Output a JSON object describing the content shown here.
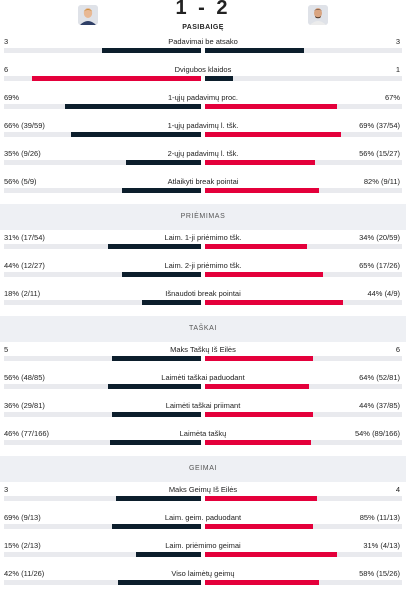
{
  "header": {
    "score": "1 - 2",
    "status": "PASIBAIGĘ",
    "home_player_avatar": "player-photo",
    "away_player_avatar": "player-photo"
  },
  "colors": {
    "dark_bar": "#0c1e2c",
    "red_bar": "#e4003b",
    "track": "#e9eaee",
    "section_bg": "#eef0f4"
  },
  "rows": [
    {
      "name": "Padavimai be atsako",
      "home": "3",
      "away": "3",
      "home_frac": 0.5,
      "away_frac": 0.5,
      "home_color": "dark",
      "away_color": "dark"
    },
    {
      "name": "Dvigubos klaidos",
      "home": "6",
      "away": "1",
      "home_frac": 0.857,
      "away_frac": 0.143,
      "home_color": "red",
      "away_color": "dark"
    },
    {
      "name": "1-ųjų padavimų proc.",
      "home": "69%",
      "away": "67%",
      "home_frac": 0.69,
      "away_frac": 0.67,
      "home_color": "dark",
      "away_color": "red"
    },
    {
      "name": "1-ųjų padavimų l. tšk.",
      "home": "66% (39/59)",
      "away": "69% (37/54)",
      "home_frac": 0.66,
      "away_frac": 0.69,
      "home_color": "dark",
      "away_color": "red"
    },
    {
      "name": "2-ųjų padavimų l. tšk.",
      "home": "35% (9/26)",
      "away": "56% (15/27)",
      "home_frac": 0.38,
      "away_frac": 0.56,
      "home_color": "dark",
      "away_color": "red"
    },
    {
      "name": "Atlaikyti break pointai",
      "home": "56% (5/9)",
      "away": "82% (9/11)",
      "home_frac": 0.4,
      "away_frac": 0.58,
      "home_color": "dark",
      "away_color": "red"
    },
    {
      "section": "PRIĖMIMAS"
    },
    {
      "name": "Laim. 1-ji priėmimo tšk.",
      "home": "31% (17/54)",
      "away": "34% (20/59)",
      "home_frac": 0.47,
      "away_frac": 0.52,
      "home_color": "dark",
      "away_color": "red"
    },
    {
      "name": "Laim. 2-ji priėmimo tšk.",
      "home": "44% (12/27)",
      "away": "65% (17/26)",
      "home_frac": 0.4,
      "away_frac": 0.6,
      "home_color": "dark",
      "away_color": "red"
    },
    {
      "name": "Išnaudoti break pointai",
      "home": "18% (2/11)",
      "away": "44% (4/9)",
      "home_frac": 0.3,
      "away_frac": 0.7,
      "home_color": "dark",
      "away_color": "red"
    },
    {
      "section": "TAŠKAI"
    },
    {
      "name": "Maks Taškų Iš Eilės",
      "home": "5",
      "away": "6",
      "home_frac": 0.45,
      "away_frac": 0.55,
      "home_color": "dark",
      "away_color": "red"
    },
    {
      "name": "Laimėti taškai paduodant",
      "home": "56% (48/85)",
      "away": "64% (52/81)",
      "home_frac": 0.47,
      "away_frac": 0.53,
      "home_color": "dark",
      "away_color": "red"
    },
    {
      "name": "Laimėti taškai priimant",
      "home": "36% (29/81)",
      "away": "44% (37/85)",
      "home_frac": 0.45,
      "away_frac": 0.55,
      "home_color": "dark",
      "away_color": "red"
    },
    {
      "name": "Laimėta taškų",
      "home": "46% (77/166)",
      "away": "54% (89/166)",
      "home_frac": 0.46,
      "away_frac": 0.54,
      "home_color": "dark",
      "away_color": "red"
    },
    {
      "section": "GEIMAI"
    },
    {
      "name": "Maks Geimų Iš Eilės",
      "home": "3",
      "away": "4",
      "home_frac": 0.43,
      "away_frac": 0.57,
      "home_color": "dark",
      "away_color": "red"
    },
    {
      "name": "Laim. geim. paduodant",
      "home": "69% (9/13)",
      "away": "85% (11/13)",
      "home_frac": 0.45,
      "away_frac": 0.55,
      "home_color": "dark",
      "away_color": "red"
    },
    {
      "name": "Laim. priėmimo geimai",
      "home": "15% (2/13)",
      "away": "31% (4/13)",
      "home_frac": 0.33,
      "away_frac": 0.67,
      "home_color": "dark",
      "away_color": "red"
    },
    {
      "name": "Viso laimėtų geimų",
      "home": "42% (11/26)",
      "away": "58% (15/26)",
      "home_frac": 0.42,
      "away_frac": 0.58,
      "home_color": "dark",
      "away_color": "red"
    }
  ]
}
